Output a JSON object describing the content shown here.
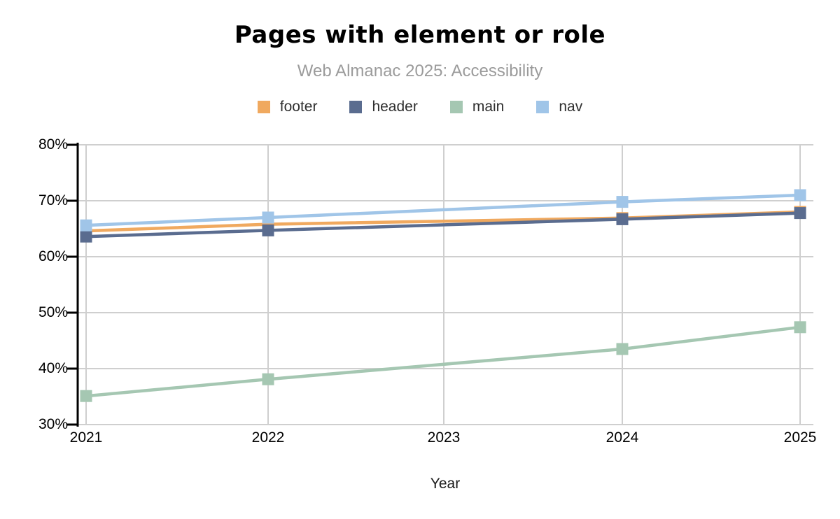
{
  "chart_data": {
    "type": "line",
    "title": "Pages with element or role",
    "subtitle": "Web Almanac 2025: Accessibility",
    "xlabel": "Year",
    "x": [
      2021,
      2022,
      2024,
      2025
    ],
    "x_tick_labels": [
      "2021",
      "2022",
      "2023",
      "2024",
      "2025"
    ],
    "y_tick_labels": [
      "80%",
      "70%",
      "60%",
      "50%",
      "40%",
      "30%"
    ],
    "y_tick_values": [
      80,
      70,
      60,
      50,
      40,
      30
    ],
    "ylim": [
      30,
      80
    ],
    "grid": true,
    "legend_position": "top",
    "marker": "square",
    "series": [
      {
        "name": "footer",
        "color": "#F0A95F",
        "values": [
          64.6,
          65.8,
          66.9,
          68.0
        ]
      },
      {
        "name": "header",
        "color": "#5A6C8F",
        "values": [
          63.6,
          64.7,
          66.7,
          67.8
        ]
      },
      {
        "name": "main",
        "color": "#A5C7B2",
        "values": [
          35.1,
          38.1,
          43.5,
          47.4
        ]
      },
      {
        "name": "nav",
        "color": "#A0C5E8",
        "values": [
          65.6,
          67.0,
          69.8,
          71.0
        ]
      }
    ]
  },
  "colors": {
    "background": "#ffffff",
    "gridline": "#cfcfcf",
    "axis": "#000000",
    "subtitle_text": "#9b9b9b",
    "legend_text": "#2f2f2f"
  }
}
